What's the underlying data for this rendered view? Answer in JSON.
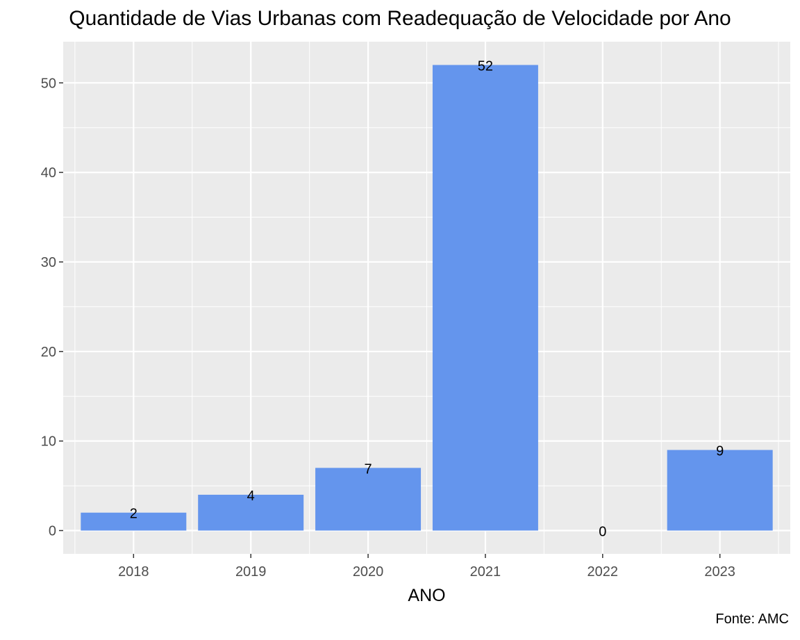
{
  "chart_data": {
    "type": "bar",
    "title": "Quantidade de Vias Urbanas com Readequação de Velocidade por Ano",
    "xlabel": "ANO",
    "ylabel": "",
    "caption": "Fonte: AMC",
    "categories": [
      "2018",
      "2019",
      "2020",
      "2021",
      "2022",
      "2023"
    ],
    "values": [
      2,
      4,
      7,
      52,
      0,
      9
    ],
    "data_labels": [
      "2",
      "4",
      "7",
      "52",
      "0",
      "9"
    ],
    "ylim": [
      -2.6,
      54.6
    ],
    "yticks": [
      0,
      10,
      20,
      30,
      40,
      50
    ],
    "grid": true,
    "colors": {
      "bar": "#6495ED",
      "panel": "#EBEBEB",
      "grid": "#FFFFFF",
      "tick_text": "#4D4D4D"
    }
  }
}
